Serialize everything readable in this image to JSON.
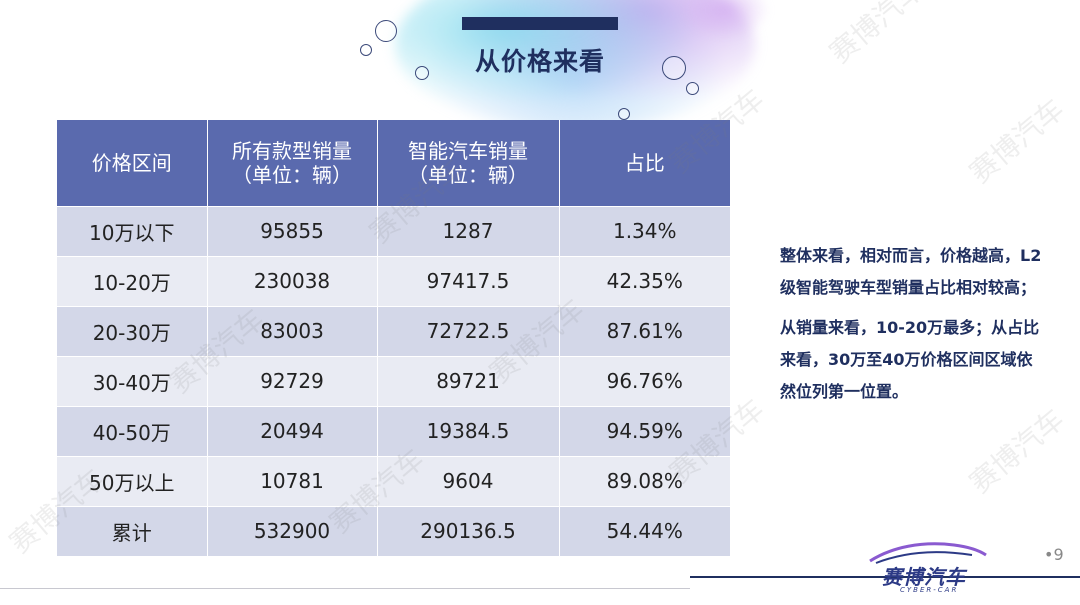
{
  "header": {
    "title": "从价格来看"
  },
  "table": {
    "headers": [
      {
        "line1": "价格区间",
        "line2": ""
      },
      {
        "line1": "所有款型销量",
        "line2": "（单位：辆）"
      },
      {
        "line1": "智能汽车销量",
        "line2": "（单位：辆）"
      },
      {
        "line1": "占比",
        "line2": ""
      }
    ],
    "rows": [
      [
        "10万以下",
        "95855",
        "1287",
        "1.34%"
      ],
      [
        "10-20万",
        "230038",
        "97417.5",
        "42.35%"
      ],
      [
        "20-30万",
        "83003",
        "72722.5",
        "87.61%"
      ],
      [
        "30-40万",
        "92729",
        "89721",
        "96.76%"
      ],
      [
        "40-50万",
        "20494",
        "19384.5",
        "94.59%"
      ],
      [
        "50万以上",
        "10781",
        "9604",
        "89.08%"
      ],
      [
        "累计",
        "532900",
        "290136.5",
        "54.44%"
      ]
    ]
  },
  "side_text": {
    "paragraph1": "整体来看，相对而言，价格越高，L2级智能驾驶车型销量占比相对较高；",
    "paragraph2": "从销量来看，10-20万最多；从占比来看，30万至40万价格区间区域依然位列第一位置。"
  },
  "page_number": "•9",
  "logo": {
    "name": "赛博汽车",
    "sub": "CYBER-CAR"
  },
  "watermark": "赛博汽车",
  "colors": {
    "header_bg": "#5a6aae",
    "row_dark": "#d3d7e8",
    "row_light": "#e9ebf3",
    "accent": "#1f2f5f"
  }
}
